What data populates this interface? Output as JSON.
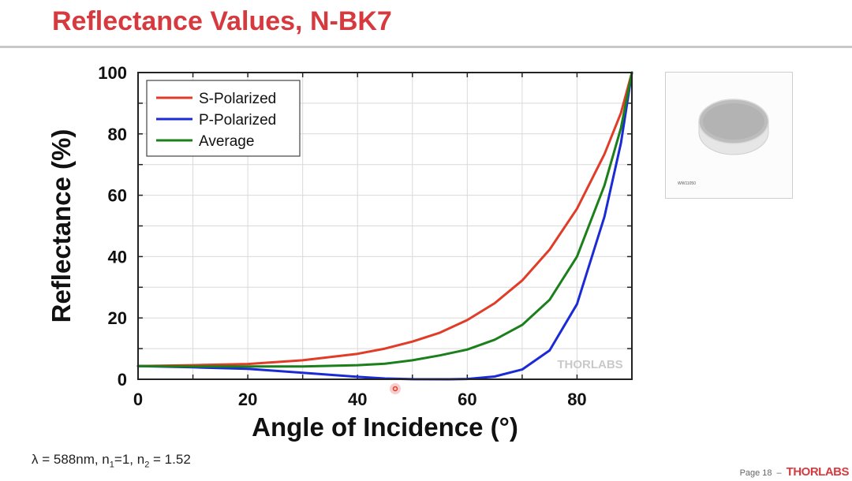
{
  "slide": {
    "title": "Reflectance Values, N-BK7",
    "page": "Page 18",
    "brand": "THORLABS",
    "footnote": {
      "lambda": "λ = 588nm, n",
      "n1_sub": "1",
      "n1_eq": "=1, n",
      "n2_sub": "2",
      "n2_eq": " = 1.52"
    },
    "product_thumbnail": {
      "label": "WW11050"
    }
  },
  "colors": {
    "title": "#d63a3f",
    "s_polarized": "#e03c27",
    "p_polarized": "#1a2bd6",
    "average": "#1b7f1b",
    "grid": "#d9d9d9"
  },
  "chart_data": {
    "type": "line",
    "xlabel": "Angle of Incidence (°)",
    "ylabel": "Reflectance (%)",
    "xlim": [
      0,
      90
    ],
    "ylim": [
      0,
      100
    ],
    "xticks": [
      0,
      20,
      40,
      60,
      80
    ],
    "yticks": [
      0,
      20,
      40,
      60,
      80,
      100
    ],
    "grid": true,
    "legend_position": "top-left",
    "watermark": "THORLABS",
    "series": [
      {
        "name": "S-Polarized",
        "color": "#e03c27",
        "x": [
          0,
          10,
          20,
          30,
          40,
          45,
          50,
          55,
          60,
          65,
          70,
          75,
          80,
          85,
          88,
          90
        ],
        "y": [
          4.3,
          4.6,
          5.0,
          6.2,
          8.3,
          10.0,
          12.3,
          15.2,
          19.3,
          24.8,
          32.2,
          42.3,
          55.6,
          73.4,
          86.8,
          100
        ]
      },
      {
        "name": "P-Polarized",
        "color": "#1a2bd6",
        "x": [
          0,
          10,
          20,
          30,
          40,
          45,
          50,
          56.7,
          60,
          65,
          70,
          75,
          80,
          85,
          88,
          90
        ],
        "y": [
          4.3,
          3.9,
          3.4,
          2.1,
          0.8,
          0.25,
          0.03,
          0.0,
          0.1,
          0.9,
          3.2,
          9.4,
          24.5,
          53.0,
          77.0,
          100
        ]
      },
      {
        "name": "Average",
        "color": "#1b7f1b",
        "x": [
          0,
          10,
          20,
          30,
          40,
          45,
          50,
          55,
          60,
          65,
          70,
          75,
          80,
          85,
          88,
          90
        ],
        "y": [
          4.3,
          4.2,
          4.2,
          4.2,
          4.6,
          5.1,
          6.2,
          7.8,
          9.7,
          12.9,
          17.7,
          25.9,
          40.0,
          63.2,
          81.9,
          100
        ]
      }
    ]
  }
}
